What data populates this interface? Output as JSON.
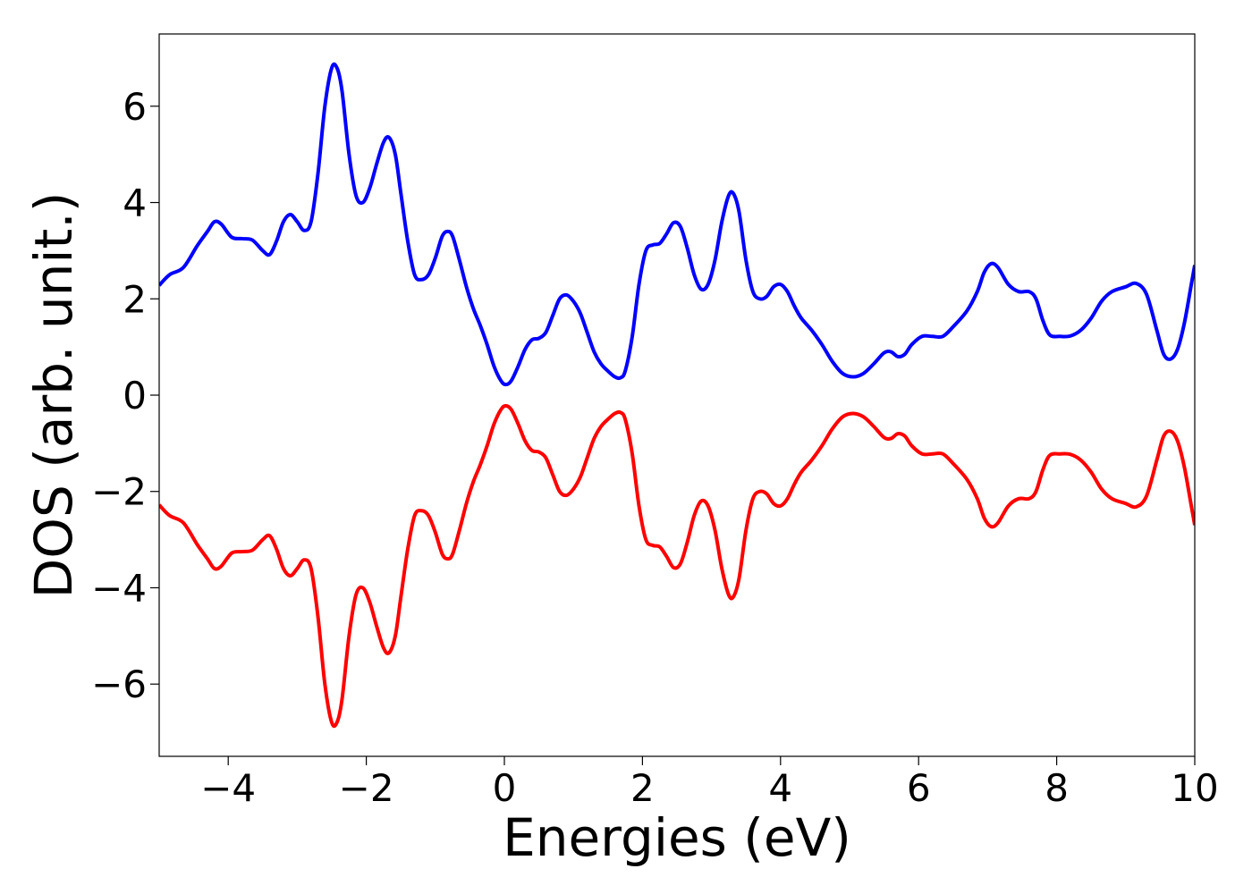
{
  "chart_data": {
    "type": "line",
    "xlabel": "Energies (eV)",
    "ylabel": "DOS (arb. unit.)",
    "xlim": [
      -5,
      10
    ],
    "ylim": [
      -7.5,
      7.5
    ],
    "grid": false,
    "x_ticks": [
      -4,
      -2,
      0,
      2,
      4,
      6,
      8,
      10
    ],
    "x_tick_labels": [
      "−4",
      "−2",
      "0",
      "2",
      "4",
      "6",
      "8",
      "10"
    ],
    "y_ticks": [
      -6,
      -4,
      -2,
      0,
      2,
      4,
      6
    ],
    "y_tick_labels": [
      "−6",
      "−4",
      "−2",
      "0",
      "2",
      "4",
      "6"
    ],
    "series": [
      {
        "color": "#0000ff",
        "points": [
          [
            -5.0,
            2.28
          ],
          [
            -4.85,
            2.5
          ],
          [
            -4.65,
            2.65
          ],
          [
            -4.45,
            3.1
          ],
          [
            -4.3,
            3.4
          ],
          [
            -4.2,
            3.6
          ],
          [
            -4.1,
            3.55
          ],
          [
            -3.95,
            3.28
          ],
          [
            -3.8,
            3.25
          ],
          [
            -3.65,
            3.22
          ],
          [
            -3.5,
            3.0
          ],
          [
            -3.4,
            2.92
          ],
          [
            -3.3,
            3.2
          ],
          [
            -3.2,
            3.6
          ],
          [
            -3.1,
            3.75
          ],
          [
            -3.0,
            3.6
          ],
          [
            -2.9,
            3.42
          ],
          [
            -2.8,
            3.6
          ],
          [
            -2.7,
            4.6
          ],
          [
            -2.6,
            6.0
          ],
          [
            -2.5,
            6.8
          ],
          [
            -2.42,
            6.78
          ],
          [
            -2.35,
            6.3
          ],
          [
            -2.25,
            5.0
          ],
          [
            -2.15,
            4.15
          ],
          [
            -2.05,
            4.0
          ],
          [
            -1.95,
            4.3
          ],
          [
            -1.85,
            4.8
          ],
          [
            -1.75,
            5.25
          ],
          [
            -1.67,
            5.35
          ],
          [
            -1.58,
            5.0
          ],
          [
            -1.5,
            4.2
          ],
          [
            -1.4,
            3.2
          ],
          [
            -1.3,
            2.5
          ],
          [
            -1.2,
            2.4
          ],
          [
            -1.1,
            2.5
          ],
          [
            -1.0,
            2.85
          ],
          [
            -0.9,
            3.3
          ],
          [
            -0.82,
            3.4
          ],
          [
            -0.75,
            3.3
          ],
          [
            -0.65,
            2.8
          ],
          [
            -0.55,
            2.25
          ],
          [
            -0.45,
            1.8
          ],
          [
            -0.35,
            1.45
          ],
          [
            -0.25,
            1.05
          ],
          [
            -0.15,
            0.6
          ],
          [
            -0.05,
            0.3
          ],
          [
            0.02,
            0.22
          ],
          [
            0.1,
            0.3
          ],
          [
            0.2,
            0.6
          ],
          [
            0.3,
            0.95
          ],
          [
            0.4,
            1.15
          ],
          [
            0.5,
            1.18
          ],
          [
            0.6,
            1.3
          ],
          [
            0.7,
            1.65
          ],
          [
            0.8,
            2.0
          ],
          [
            0.9,
            2.08
          ],
          [
            1.0,
            1.95
          ],
          [
            1.1,
            1.7
          ],
          [
            1.2,
            1.3
          ],
          [
            1.3,
            0.9
          ],
          [
            1.4,
            0.65
          ],
          [
            1.5,
            0.5
          ],
          [
            1.6,
            0.38
          ],
          [
            1.68,
            0.36
          ],
          [
            1.75,
            0.5
          ],
          [
            1.85,
            1.2
          ],
          [
            1.95,
            2.3
          ],
          [
            2.05,
            3.0
          ],
          [
            2.15,
            3.12
          ],
          [
            2.25,
            3.15
          ],
          [
            2.35,
            3.35
          ],
          [
            2.45,
            3.58
          ],
          [
            2.55,
            3.5
          ],
          [
            2.65,
            3.05
          ],
          [
            2.75,
            2.5
          ],
          [
            2.85,
            2.2
          ],
          [
            2.95,
            2.3
          ],
          [
            3.05,
            2.8
          ],
          [
            3.15,
            3.6
          ],
          [
            3.25,
            4.15
          ],
          [
            3.32,
            4.18
          ],
          [
            3.4,
            3.8
          ],
          [
            3.5,
            2.8
          ],
          [
            3.6,
            2.15
          ],
          [
            3.7,
            2.0
          ],
          [
            3.8,
            2.05
          ],
          [
            3.9,
            2.25
          ],
          [
            4.0,
            2.3
          ],
          [
            4.1,
            2.15
          ],
          [
            4.2,
            1.85
          ],
          [
            4.3,
            1.6
          ],
          [
            4.45,
            1.35
          ],
          [
            4.6,
            1.05
          ],
          [
            4.75,
            0.7
          ],
          [
            4.9,
            0.45
          ],
          [
            5.05,
            0.38
          ],
          [
            5.2,
            0.45
          ],
          [
            5.35,
            0.65
          ],
          [
            5.5,
            0.88
          ],
          [
            5.6,
            0.9
          ],
          [
            5.7,
            0.8
          ],
          [
            5.8,
            0.85
          ],
          [
            5.9,
            1.05
          ],
          [
            6.05,
            1.22
          ],
          [
            6.2,
            1.22
          ],
          [
            6.35,
            1.22
          ],
          [
            6.5,
            1.42
          ],
          [
            6.7,
            1.75
          ],
          [
            6.85,
            2.15
          ],
          [
            6.95,
            2.55
          ],
          [
            7.05,
            2.73
          ],
          [
            7.15,
            2.65
          ],
          [
            7.3,
            2.3
          ],
          [
            7.45,
            2.15
          ],
          [
            7.6,
            2.15
          ],
          [
            7.7,
            2.0
          ],
          [
            7.8,
            1.55
          ],
          [
            7.9,
            1.25
          ],
          [
            8.05,
            1.22
          ],
          [
            8.2,
            1.23
          ],
          [
            8.35,
            1.35
          ],
          [
            8.5,
            1.6
          ],
          [
            8.65,
            1.95
          ],
          [
            8.8,
            2.15
          ],
          [
            9.0,
            2.25
          ],
          [
            9.15,
            2.32
          ],
          [
            9.3,
            2.1
          ],
          [
            9.45,
            1.35
          ],
          [
            9.55,
            0.85
          ],
          [
            9.65,
            0.75
          ],
          [
            9.75,
            0.95
          ],
          [
            9.85,
            1.5
          ],
          [
            9.95,
            2.3
          ],
          [
            10.0,
            2.7
          ]
        ]
      },
      {
        "color": "#ff0000",
        "points": [
          [
            -5.0,
            -2.28
          ],
          [
            -4.85,
            -2.5
          ],
          [
            -4.65,
            -2.65
          ],
          [
            -4.45,
            -3.1
          ],
          [
            -4.3,
            -3.4
          ],
          [
            -4.2,
            -3.6
          ],
          [
            -4.1,
            -3.55
          ],
          [
            -3.95,
            -3.28
          ],
          [
            -3.8,
            -3.25
          ],
          [
            -3.65,
            -3.22
          ],
          [
            -3.5,
            -3.0
          ],
          [
            -3.4,
            -2.92
          ],
          [
            -3.3,
            -3.2
          ],
          [
            -3.2,
            -3.6
          ],
          [
            -3.1,
            -3.75
          ],
          [
            -3.0,
            -3.6
          ],
          [
            -2.9,
            -3.42
          ],
          [
            -2.8,
            -3.6
          ],
          [
            -2.7,
            -4.6
          ],
          [
            -2.6,
            -6.0
          ],
          [
            -2.5,
            -6.8
          ],
          [
            -2.42,
            -6.78
          ],
          [
            -2.35,
            -6.3
          ],
          [
            -2.25,
            -5.0
          ],
          [
            -2.15,
            -4.15
          ],
          [
            -2.05,
            -4.0
          ],
          [
            -1.95,
            -4.3
          ],
          [
            -1.85,
            -4.8
          ],
          [
            -1.75,
            -5.25
          ],
          [
            -1.67,
            -5.35
          ],
          [
            -1.58,
            -5.0
          ],
          [
            -1.5,
            -4.2
          ],
          [
            -1.4,
            -3.2
          ],
          [
            -1.3,
            -2.5
          ],
          [
            -1.2,
            -2.4
          ],
          [
            -1.1,
            -2.5
          ],
          [
            -1.0,
            -2.85
          ],
          [
            -0.9,
            -3.3
          ],
          [
            -0.82,
            -3.4
          ],
          [
            -0.75,
            -3.3
          ],
          [
            -0.65,
            -2.8
          ],
          [
            -0.55,
            -2.25
          ],
          [
            -0.45,
            -1.8
          ],
          [
            -0.35,
            -1.45
          ],
          [
            -0.25,
            -1.05
          ],
          [
            -0.15,
            -0.6
          ],
          [
            -0.05,
            -0.3
          ],
          [
            0.02,
            -0.22
          ],
          [
            0.1,
            -0.3
          ],
          [
            0.2,
            -0.6
          ],
          [
            0.3,
            -0.95
          ],
          [
            0.4,
            -1.15
          ],
          [
            0.5,
            -1.18
          ],
          [
            0.6,
            -1.3
          ],
          [
            0.7,
            -1.65
          ],
          [
            0.8,
            -2.0
          ],
          [
            0.9,
            -2.08
          ],
          [
            1.0,
            -1.95
          ],
          [
            1.1,
            -1.7
          ],
          [
            1.2,
            -1.3
          ],
          [
            1.3,
            -0.9
          ],
          [
            1.4,
            -0.65
          ],
          [
            1.5,
            -0.5
          ],
          [
            1.6,
            -0.38
          ],
          [
            1.68,
            -0.36
          ],
          [
            1.75,
            -0.5
          ],
          [
            1.85,
            -1.2
          ],
          [
            1.95,
            -2.3
          ],
          [
            2.05,
            -3.0
          ],
          [
            2.15,
            -3.12
          ],
          [
            2.25,
            -3.15
          ],
          [
            2.35,
            -3.35
          ],
          [
            2.45,
            -3.58
          ],
          [
            2.55,
            -3.5
          ],
          [
            2.65,
            -3.05
          ],
          [
            2.75,
            -2.5
          ],
          [
            2.85,
            -2.2
          ],
          [
            2.95,
            -2.3
          ],
          [
            3.05,
            -2.8
          ],
          [
            3.15,
            -3.6
          ],
          [
            3.25,
            -4.15
          ],
          [
            3.32,
            -4.18
          ],
          [
            3.4,
            -3.8
          ],
          [
            3.5,
            -2.8
          ],
          [
            3.6,
            -2.15
          ],
          [
            3.7,
            -2.0
          ],
          [
            3.8,
            -2.05
          ],
          [
            3.9,
            -2.25
          ],
          [
            4.0,
            -2.3
          ],
          [
            4.1,
            -2.15
          ],
          [
            4.2,
            -1.85
          ],
          [
            4.3,
            -1.6
          ],
          [
            4.45,
            -1.35
          ],
          [
            4.6,
            -1.05
          ],
          [
            4.75,
            -0.7
          ],
          [
            4.9,
            -0.45
          ],
          [
            5.05,
            -0.38
          ],
          [
            5.2,
            -0.45
          ],
          [
            5.35,
            -0.65
          ],
          [
            5.5,
            -0.88
          ],
          [
            5.6,
            -0.9
          ],
          [
            5.7,
            -0.8
          ],
          [
            5.8,
            -0.85
          ],
          [
            5.9,
            -1.05
          ],
          [
            6.05,
            -1.22
          ],
          [
            6.2,
            -1.22
          ],
          [
            6.35,
            -1.22
          ],
          [
            6.5,
            -1.42
          ],
          [
            6.7,
            -1.75
          ],
          [
            6.85,
            -2.15
          ],
          [
            6.95,
            -2.55
          ],
          [
            7.05,
            -2.73
          ],
          [
            7.15,
            -2.65
          ],
          [
            7.3,
            -2.3
          ],
          [
            7.45,
            -2.15
          ],
          [
            7.6,
            -2.15
          ],
          [
            7.7,
            -2.0
          ],
          [
            7.8,
            -1.55
          ],
          [
            7.9,
            -1.25
          ],
          [
            8.05,
            -1.22
          ],
          [
            8.2,
            -1.23
          ],
          [
            8.35,
            -1.35
          ],
          [
            8.5,
            -1.6
          ],
          [
            8.65,
            -1.95
          ],
          [
            8.8,
            -2.15
          ],
          [
            9.0,
            -2.25
          ],
          [
            9.15,
            -2.32
          ],
          [
            9.3,
            -2.1
          ],
          [
            9.45,
            -1.35
          ],
          [
            9.55,
            -0.85
          ],
          [
            9.65,
            -0.75
          ],
          [
            9.75,
            -0.95
          ],
          [
            9.85,
            -1.5
          ],
          [
            9.95,
            -2.3
          ],
          [
            10.0,
            -2.7
          ]
        ]
      }
    ]
  }
}
